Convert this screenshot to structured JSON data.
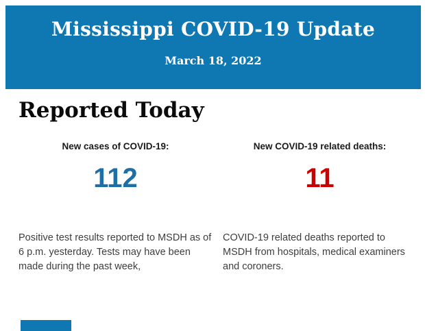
{
  "header": {
    "title": "Mississippi COVID-19 Update",
    "date": "March 18, 2022",
    "background_color": "#0f78b2",
    "text_color": "#ffffff"
  },
  "section": {
    "heading": "Reported Today"
  },
  "stats": {
    "cases": {
      "label": "New cases of COVID-19:",
      "value": "112",
      "value_color": "#1e6fa6",
      "description": "Positive test results reported to MSDH as of 6 p.m. yesterday. Tests may have been made during the past week,"
    },
    "deaths": {
      "label": "New COVID-19 related deaths:",
      "value": "11",
      "value_color": "#cc0000",
      "description": "COVID-19 related deaths reported to MSDH from hospitals, medical examiners and coroners."
    }
  },
  "footer": {
    "partial_next_banner_color": "#0f78b2"
  }
}
